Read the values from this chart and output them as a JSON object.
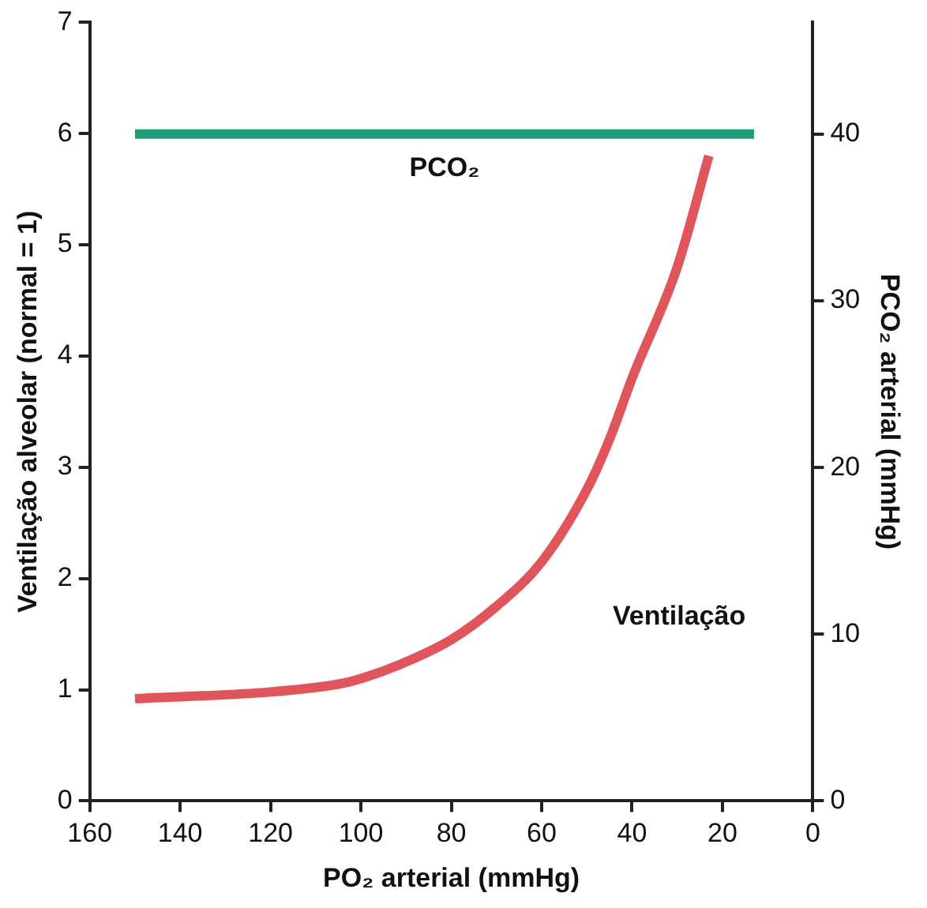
{
  "chart_data": {
    "type": "line",
    "xlabel": "PO₂ arterial (mmHg)",
    "ylabel": "Ventilação alveolar (normal = 1)",
    "y2label": "PCO₂ arterial (mmHg)",
    "xlim": [
      160,
      0
    ],
    "xticks": [
      160,
      140,
      120,
      100,
      80,
      60,
      40,
      20,
      0
    ],
    "ylim": [
      0,
      7
    ],
    "yticks": [
      0,
      1,
      2,
      3,
      4,
      5,
      6,
      7
    ],
    "y2lim": [
      0,
      46.7
    ],
    "y2ticks": [
      0,
      10,
      20,
      30,
      40
    ],
    "grid": false,
    "legend": false,
    "marker": "none",
    "line_style": "solid",
    "series": [
      {
        "name": "Ventilação",
        "color": "#e0545c",
        "x": [
          150,
          120,
          105,
          100,
          90,
          80,
          70,
          60,
          50,
          45,
          40,
          30,
          23
        ],
        "values": [
          0.92,
          0.98,
          1.05,
          1.1,
          1.25,
          1.45,
          1.75,
          2.15,
          2.8,
          3.25,
          3.8,
          4.8,
          5.8
        ]
      },
      {
        "name": "PCO₂",
        "color": "#1f9e7c",
        "axis": "y2",
        "x": [
          150,
          13
        ],
        "values": [
          40,
          40
        ]
      }
    ]
  }
}
